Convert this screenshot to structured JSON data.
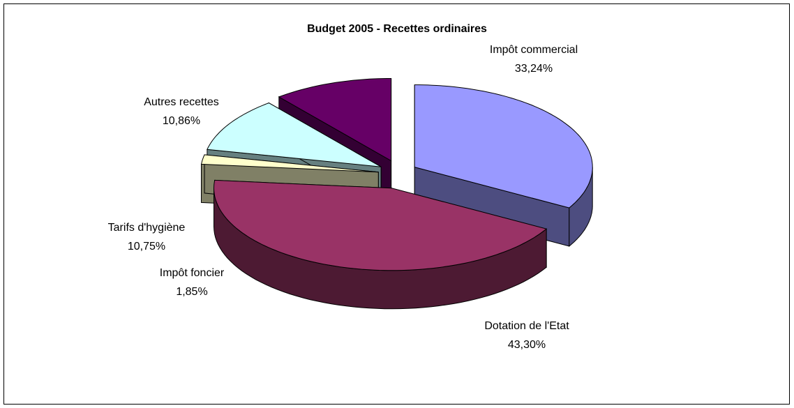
{
  "chart_data": {
    "type": "pie",
    "title": "Budget 2005 - Recettes ordinaires",
    "categories": [
      "Impôt commercial",
      "Dotation de l'Etat",
      "Impôt foncier",
      "Tarifs d'hygiène",
      "Autres recettes"
    ],
    "values": [
      33.24,
      43.3,
      1.85,
      10.75,
      10.86
    ],
    "value_labels": [
      "33,24%",
      "43,30%",
      "1,85%",
      "10,75%",
      "10,86%"
    ],
    "colors": [
      "#9999ff",
      "#993366",
      "#ffffcc",
      "#ccffff",
      "#660066"
    ]
  }
}
